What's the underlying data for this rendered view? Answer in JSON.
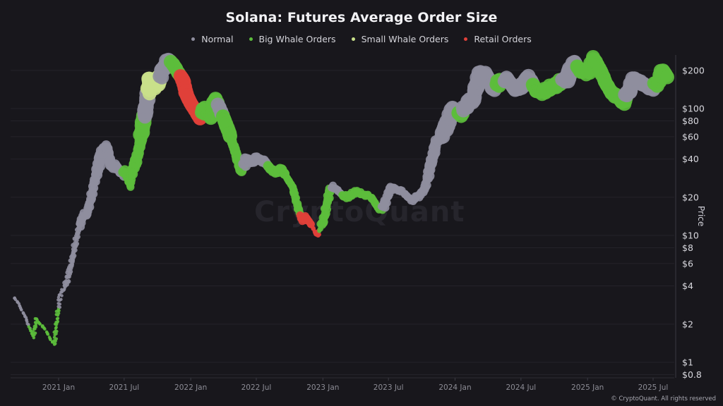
{
  "header": {
    "title": "Solana: Futures Average Order Size"
  },
  "legend": [
    {
      "label": "Normal",
      "color": "#8f8e9e"
    },
    {
      "label": "Big Whale Orders",
      "color": "#5cbd3c"
    },
    {
      "label": "Small Whale Orders",
      "color": "#c9e08a"
    },
    {
      "label": "Retail Orders",
      "color": "#e0403a"
    }
  ],
  "watermark": "CryptoQuant",
  "footer": {
    "copyright": "© CryptoQuant. All rights reserved"
  },
  "axis": {
    "ylabel": "Price",
    "y_ticks": [
      "$200",
      "$100",
      "$80",
      "$60",
      "$40",
      "$20",
      "$10",
      "$8",
      "$6",
      "$4",
      "$2",
      "$1",
      "$0.8"
    ],
    "x_ticks": [
      "2021 Jan",
      "2021 Jul",
      "2022 Jan",
      "2022 Jul",
      "2023 Jan",
      "2023 Jul",
      "2024 Jan",
      "2024 Jul",
      "2025 Jan",
      "2025 Jul"
    ]
  },
  "chart_data": {
    "type": "scatter",
    "title": "Solana: Futures Average Order Size",
    "xlabel": "",
    "ylabel": "Price",
    "yscale": "log",
    "ylim": [
      0.8,
      260
    ],
    "xlim": [
      "2020-08",
      "2025-09"
    ],
    "grid": "horizontal",
    "legend_position": "top",
    "x_ticks": [
      "2021 Jan",
      "2021 Jul",
      "2022 Jan",
      "2022 Jul",
      "2023 Jan",
      "2023 Jul",
      "2024 Jan",
      "2024 Jul",
      "2025 Jan",
      "2025 Jul"
    ],
    "y_ticks": [
      200,
      100,
      80,
      60,
      40,
      20,
      10,
      8,
      6,
      4,
      2,
      1,
      0.8
    ],
    "categories": [
      "Normal",
      "Big Whale Orders",
      "Small Whale Orders",
      "Retail Orders"
    ],
    "points": [
      {
        "t": "2020-09-01",
        "p": 3.2,
        "c": "Normal"
      },
      {
        "t": "2020-09-10",
        "p": 3.0,
        "c": "Normal"
      },
      {
        "t": "2020-09-20",
        "p": 2.6,
        "c": "Normal"
      },
      {
        "t": "2020-10-01",
        "p": 2.3,
        "c": "Normal"
      },
      {
        "t": "2020-10-08",
        "p": 2.0,
        "c": "Normal"
      },
      {
        "t": "2020-10-15",
        "p": 1.8,
        "c": "Big Whale Orders"
      },
      {
        "t": "2020-10-22",
        "p": 1.6,
        "c": "Big Whale Orders"
      },
      {
        "t": "2020-11-01",
        "p": 2.2,
        "c": "Big Whale Orders"
      },
      {
        "t": "2020-11-10",
        "p": 2.0,
        "c": "Big Whale Orders"
      },
      {
        "t": "2020-11-20",
        "p": 1.9,
        "c": "Big Whale Orders"
      },
      {
        "t": "2020-12-01",
        "p": 1.7,
        "c": "Big Whale Orders"
      },
      {
        "t": "2020-12-10",
        "p": 1.5,
        "c": "Big Whale Orders"
      },
      {
        "t": "2020-12-20",
        "p": 1.4,
        "c": "Big Whale Orders"
      },
      {
        "t": "2020-12-28",
        "p": 2.2,
        "c": "Big Whale Orders"
      },
      {
        "t": "2021-01-05",
        "p": 3.4,
        "c": "Normal"
      },
      {
        "t": "2021-01-15",
        "p": 3.8,
        "c": "Normal"
      },
      {
        "t": "2021-01-25",
        "p": 4.5,
        "c": "Normal"
      },
      {
        "t": "2021-02-05",
        "p": 6.0,
        "c": "Normal"
      },
      {
        "t": "2021-02-15",
        "p": 8.5,
        "c": "Normal"
      },
      {
        "t": "2021-02-25",
        "p": 11,
        "c": "Normal"
      },
      {
        "t": "2021-03-05",
        "p": 14,
        "c": "Normal"
      },
      {
        "t": "2021-03-20",
        "p": 15,
        "c": "Normal"
      },
      {
        "t": "2021-04-01",
        "p": 20,
        "c": "Normal"
      },
      {
        "t": "2021-04-15",
        "p": 30,
        "c": "Normal"
      },
      {
        "t": "2021-05-01",
        "p": 45,
        "c": "Normal"
      },
      {
        "t": "2021-05-15",
        "p": 50,
        "c": "Normal"
      },
      {
        "t": "2021-05-25",
        "p": 35,
        "c": "Normal"
      },
      {
        "t": "2021-06-10",
        "p": 35,
        "c": "Normal"
      },
      {
        "t": "2021-06-25",
        "p": 30,
        "c": "Normal"
      },
      {
        "t": "2021-07-05",
        "p": 32,
        "c": "Big Whale Orders"
      },
      {
        "t": "2021-07-15",
        "p": 25,
        "c": "Big Whale Orders"
      },
      {
        "t": "2021-07-28",
        "p": 35,
        "c": "Big Whale Orders"
      },
      {
        "t": "2021-08-10",
        "p": 45,
        "c": "Big Whale Orders"
      },
      {
        "t": "2021-08-20",
        "p": 70,
        "c": "Big Whale Orders"
      },
      {
        "t": "2021-09-01",
        "p": 110,
        "c": "Normal"
      },
      {
        "t": "2021-09-10",
        "p": 170,
        "c": "Small Whale Orders"
      },
      {
        "t": "2021-09-20",
        "p": 150,
        "c": "Small Whale Orders"
      },
      {
        "t": "2021-10-01",
        "p": 160,
        "c": "Small Whale Orders"
      },
      {
        "t": "2021-10-15",
        "p": 200,
        "c": "Normal"
      },
      {
        "t": "2021-11-01",
        "p": 240,
        "c": "Normal"
      },
      {
        "t": "2021-11-15",
        "p": 220,
        "c": "Big Whale Orders"
      },
      {
        "t": "2021-11-28",
        "p": 190,
        "c": "Big Whale Orders"
      },
      {
        "t": "2021-12-10",
        "p": 170,
        "c": "Retail Orders"
      },
      {
        "t": "2021-12-20",
        "p": 130,
        "c": "Retail Orders"
      },
      {
        "t": "2022-01-01",
        "p": 110,
        "c": "Retail Orders"
      },
      {
        "t": "2022-01-15",
        "p": 95,
        "c": "Retail Orders"
      },
      {
        "t": "2022-01-25",
        "p": 85,
        "c": "Retail Orders"
      },
      {
        "t": "2022-02-10",
        "p": 100,
        "c": "Big Whale Orders"
      },
      {
        "t": "2022-02-25",
        "p": 85,
        "c": "Big Whale Orders"
      },
      {
        "t": "2022-03-10",
        "p": 120,
        "c": "Big Whale Orders"
      },
      {
        "t": "2022-03-25",
        "p": 95,
        "c": "Normal"
      },
      {
        "t": "2022-04-05",
        "p": 80,
        "c": "Big Whale Orders"
      },
      {
        "t": "2022-04-20",
        "p": 60,
        "c": "Big Whale Orders"
      },
      {
        "t": "2022-05-05",
        "p": 45,
        "c": "Big Whale Orders"
      },
      {
        "t": "2022-05-20",
        "p": 32,
        "c": "Big Whale Orders"
      },
      {
        "t": "2022-06-05",
        "p": 40,
        "c": "Normal"
      },
      {
        "t": "2022-06-20",
        "p": 38,
        "c": "Normal"
      },
      {
        "t": "2022-07-05",
        "p": 40,
        "c": "Normal"
      },
      {
        "t": "2022-07-25",
        "p": 38,
        "c": "Normal"
      },
      {
        "t": "2022-08-10",
        "p": 33,
        "c": "Big Whale Orders"
      },
      {
        "t": "2022-08-25",
        "p": 32,
        "c": "Big Whale Orders"
      },
      {
        "t": "2022-09-10",
        "p": 33,
        "c": "Big Whale Orders"
      },
      {
        "t": "2022-09-25",
        "p": 28,
        "c": "Big Whale Orders"
      },
      {
        "t": "2022-10-10",
        "p": 24,
        "c": "Big Whale Orders"
      },
      {
        "t": "2022-10-25",
        "p": 16,
        "c": "Big Whale Orders"
      },
      {
        "t": "2022-11-05",
        "p": 13,
        "c": "Retail Orders"
      },
      {
        "t": "2022-11-15",
        "p": 14,
        "c": "Retail Orders"
      },
      {
        "t": "2022-12-01",
        "p": 12,
        "c": "Retail Orders"
      },
      {
        "t": "2022-12-15",
        "p": 10,
        "c": "Retail Orders"
      },
      {
        "t": "2022-12-28",
        "p": 12,
        "c": "Big Whale Orders"
      },
      {
        "t": "2023-01-10",
        "p": 16,
        "c": "Big Whale Orders"
      },
      {
        "t": "2023-01-20",
        "p": 23,
        "c": "Big Whale Orders"
      },
      {
        "t": "2023-02-01",
        "p": 24,
        "c": "Normal"
      },
      {
        "t": "2023-02-15",
        "p": 22,
        "c": "Normal"
      },
      {
        "t": "2023-03-01",
        "p": 20,
        "c": "Big Whale Orders"
      },
      {
        "t": "2023-03-20",
        "p": 21,
        "c": "Big Whale Orders"
      },
      {
        "t": "2023-04-05",
        "p": 22,
        "c": "Big Whale Orders"
      },
      {
        "t": "2023-04-25",
        "p": 21,
        "c": "Big Whale Orders"
      },
      {
        "t": "2023-05-15",
        "p": 20,
        "c": "Big Whale Orders"
      },
      {
        "t": "2023-06-05",
        "p": 16,
        "c": "Big Whale Orders"
      },
      {
        "t": "2023-06-20",
        "p": 17,
        "c": "Normal"
      },
      {
        "t": "2023-07-05",
        "p": 24,
        "c": "Normal"
      },
      {
        "t": "2023-07-20",
        "p": 23,
        "c": "Normal"
      },
      {
        "t": "2023-08-10",
        "p": 22,
        "c": "Normal"
      },
      {
        "t": "2023-09-01",
        "p": 19,
        "c": "Normal"
      },
      {
        "t": "2023-09-20",
        "p": 20,
        "c": "Normal"
      },
      {
        "t": "2023-10-10",
        "p": 24,
        "c": "Normal"
      },
      {
        "t": "2023-10-25",
        "p": 35,
        "c": "Normal"
      },
      {
        "t": "2023-11-10",
        "p": 55,
        "c": "Normal"
      },
      {
        "t": "2023-11-25",
        "p": 60,
        "c": "Normal"
      },
      {
        "t": "2023-12-10",
        "p": 75,
        "c": "Normal"
      },
      {
        "t": "2023-12-25",
        "p": 100,
        "c": "Normal"
      },
      {
        "t": "2024-01-05",
        "p": 95,
        "c": "Normal"
      },
      {
        "t": "2024-01-15",
        "p": 90,
        "c": "Big Whale Orders"
      },
      {
        "t": "2024-02-01",
        "p": 105,
        "c": "Normal"
      },
      {
        "t": "2024-02-20",
        "p": 120,
        "c": "Normal"
      },
      {
        "t": "2024-03-10",
        "p": 190,
        "c": "Normal"
      },
      {
        "t": "2024-03-28",
        "p": 185,
        "c": "Normal"
      },
      {
        "t": "2024-04-15",
        "p": 140,
        "c": "Normal"
      },
      {
        "t": "2024-05-05",
        "p": 165,
        "c": "Big Whale Orders"
      },
      {
        "t": "2024-05-25",
        "p": 170,
        "c": "Normal"
      },
      {
        "t": "2024-06-15",
        "p": 140,
        "c": "Normal"
      },
      {
        "t": "2024-07-05",
        "p": 150,
        "c": "Normal"
      },
      {
        "t": "2024-07-25",
        "p": 175,
        "c": "Normal"
      },
      {
        "t": "2024-08-10",
        "p": 140,
        "c": "Big Whale Orders"
      },
      {
        "t": "2024-08-25",
        "p": 135,
        "c": "Big Whale Orders"
      },
      {
        "t": "2024-09-10",
        "p": 140,
        "c": "Big Whale Orders"
      },
      {
        "t": "2024-09-28",
        "p": 150,
        "c": "Big Whale Orders"
      },
      {
        "t": "2024-10-15",
        "p": 160,
        "c": "Big Whale Orders"
      },
      {
        "t": "2024-11-05",
        "p": 170,
        "c": "Normal"
      },
      {
        "t": "2024-11-25",
        "p": 235,
        "c": "Normal"
      },
      {
        "t": "2024-12-10",
        "p": 200,
        "c": "Big Whale Orders"
      },
      {
        "t": "2025-01-01",
        "p": 190,
        "c": "Big Whale Orders"
      },
      {
        "t": "2025-01-20",
        "p": 245,
        "c": "Big Whale Orders"
      },
      {
        "t": "2025-02-05",
        "p": 200,
        "c": "Big Whale Orders"
      },
      {
        "t": "2025-02-20",
        "p": 160,
        "c": "Big Whale Orders"
      },
      {
        "t": "2025-03-10",
        "p": 130,
        "c": "Big Whale Orders"
      },
      {
        "t": "2025-03-25",
        "p": 125,
        "c": "Big Whale Orders"
      },
      {
        "t": "2025-04-08",
        "p": 110,
        "c": "Big Whale Orders"
      },
      {
        "t": "2025-04-25",
        "p": 140,
        "c": "Normal"
      },
      {
        "t": "2025-05-10",
        "p": 170,
        "c": "Normal"
      },
      {
        "t": "2025-05-28",
        "p": 160,
        "c": "Normal"
      },
      {
        "t": "2025-06-15",
        "p": 150,
        "c": "Normal"
      },
      {
        "t": "2025-07-01",
        "p": 145,
        "c": "Normal"
      },
      {
        "t": "2025-07-15",
        "p": 160,
        "c": "Big Whale Orders"
      },
      {
        "t": "2025-07-28",
        "p": 200,
        "c": "Big Whale Orders"
      },
      {
        "t": "2025-08-10",
        "p": 175,
        "c": "Big Whale Orders"
      }
    ]
  }
}
